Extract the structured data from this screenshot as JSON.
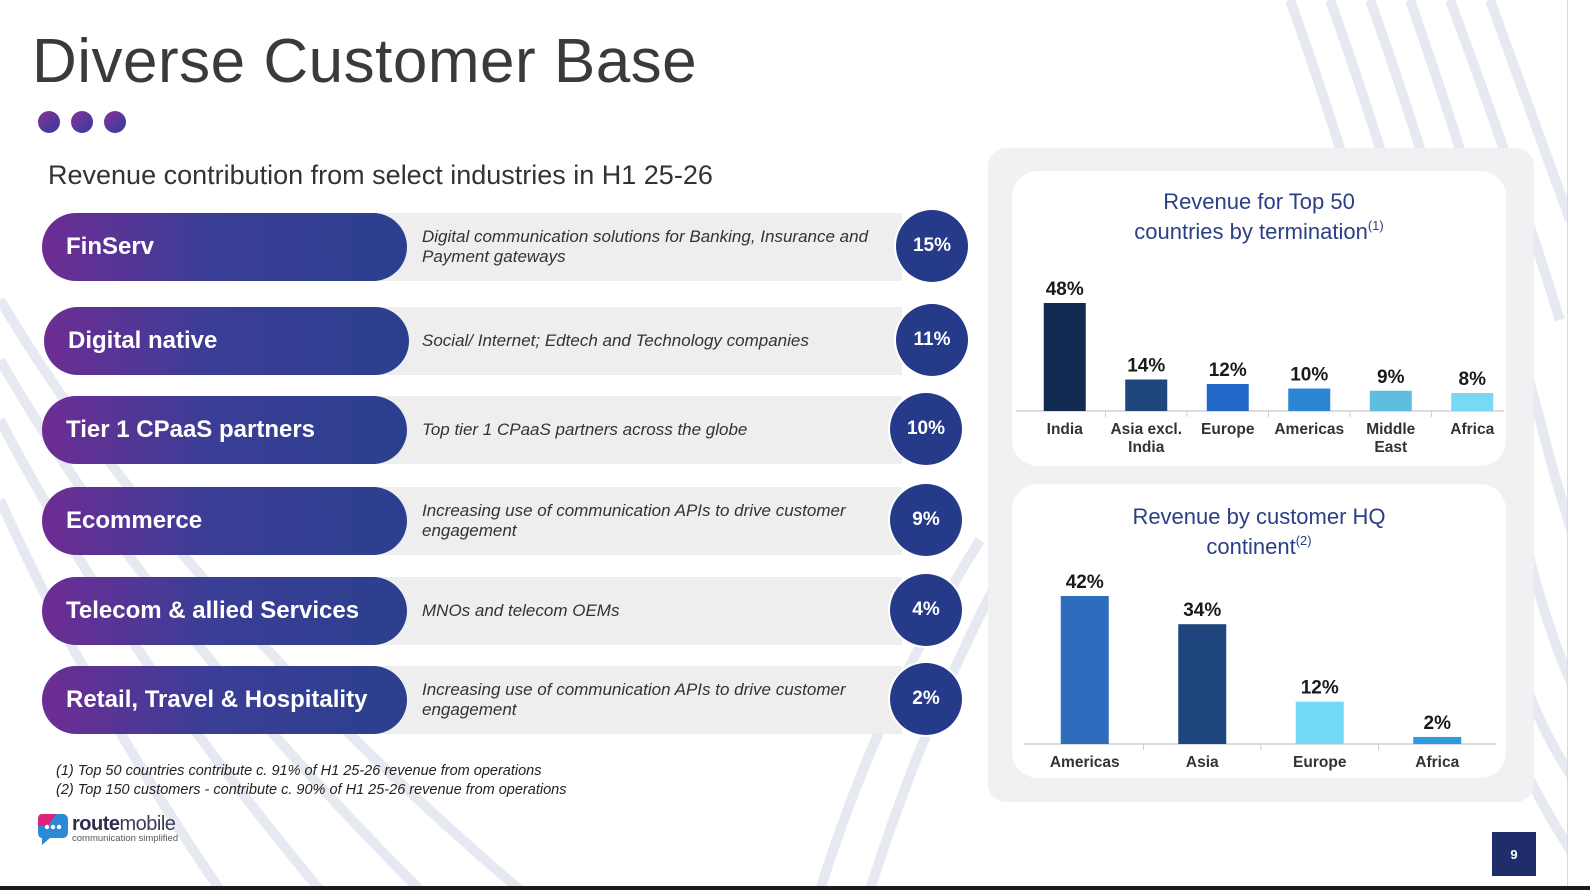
{
  "slide": {
    "title": "Diverse Customer Base",
    "subtitle": "Revenue contribution from select industries in H1 25-26",
    "page_number": "9"
  },
  "industries": [
    {
      "name": "FinServ",
      "description": "Digital communication solutions for Banking, Insurance and Payment gateways",
      "share": "15%"
    },
    {
      "name": "Digital native",
      "description": "Social/ Internet; Edtech and Technology companies",
      "share": "11%"
    },
    {
      "name": "Tier 1 CPaaS partners",
      "description": "Top tier 1 CPaaS partners across the globe",
      "share": "10%"
    },
    {
      "name": "Ecommerce",
      "description": "Increasing use of communication APIs to drive customer engagement",
      "share": "9%"
    },
    {
      "name": "Telecom & allied Services",
      "description": "MNOs and telecom OEMs",
      "share": "4%"
    },
    {
      "name": "Retail, Travel & Hospitality",
      "description": "Increasing use of communication APIs to drive customer engagement",
      "share": "2%"
    }
  ],
  "footnotes": [
    "(1) Top 50 countries contribute c. 91% of  H1 25-26 revenue from operations",
    "(2) Top 150 customers - contribute c. 90% of  H1 25-26 revenue from operations"
  ],
  "logo": {
    "name_bold": "route",
    "name_light": "mobile",
    "tagline": "communication simplified"
  },
  "colors": {
    "accent_purple": "#6e2c94",
    "accent_blue": "#263a8a",
    "page_badge": "#1f2d6b"
  },
  "chart_data": [
    {
      "type": "bar",
      "title_lines": [
        "Revenue for Top 50",
        "countries by termination"
      ],
      "title_superscript": "(1)",
      "categories": [
        "India",
        "Asia excl. India",
        "Europe",
        "Americas",
        "Middle East",
        "Africa"
      ],
      "category_lines": [
        [
          "India"
        ],
        [
          "Asia excl.",
          "India"
        ],
        [
          "Europe"
        ],
        [
          "Americas"
        ],
        [
          "Middle",
          "East"
        ],
        [
          "Africa"
        ]
      ],
      "values": [
        48,
        14,
        12,
        10,
        9,
        8
      ],
      "value_labels": [
        "48%",
        "14%",
        "12%",
        "10%",
        "9%",
        "8%"
      ],
      "bar_colors": [
        "#122a52",
        "#1f477e",
        "#2268c8",
        "#2b87d3",
        "#5fbde0",
        "#7ad8f7"
      ],
      "ylim": [
        0,
        48
      ],
      "grid": false
    },
    {
      "type": "bar",
      "title_lines": [
        "Revenue by customer HQ",
        "continent"
      ],
      "title_superscript": "(2)",
      "categories": [
        "Americas",
        "Asia",
        "Europe",
        "Africa"
      ],
      "category_lines": [
        [
          "Americas"
        ],
        [
          "Asia"
        ],
        [
          "Europe"
        ],
        [
          "Africa"
        ]
      ],
      "values": [
        42,
        34,
        12,
        2
      ],
      "value_labels": [
        "42%",
        "34%",
        "12%",
        "2%"
      ],
      "bar_colors": [
        "#2e6cbd",
        "#1f477e",
        "#74d8f7",
        "#2e9be0"
      ],
      "ylim": [
        0,
        42
      ],
      "grid": false
    }
  ]
}
